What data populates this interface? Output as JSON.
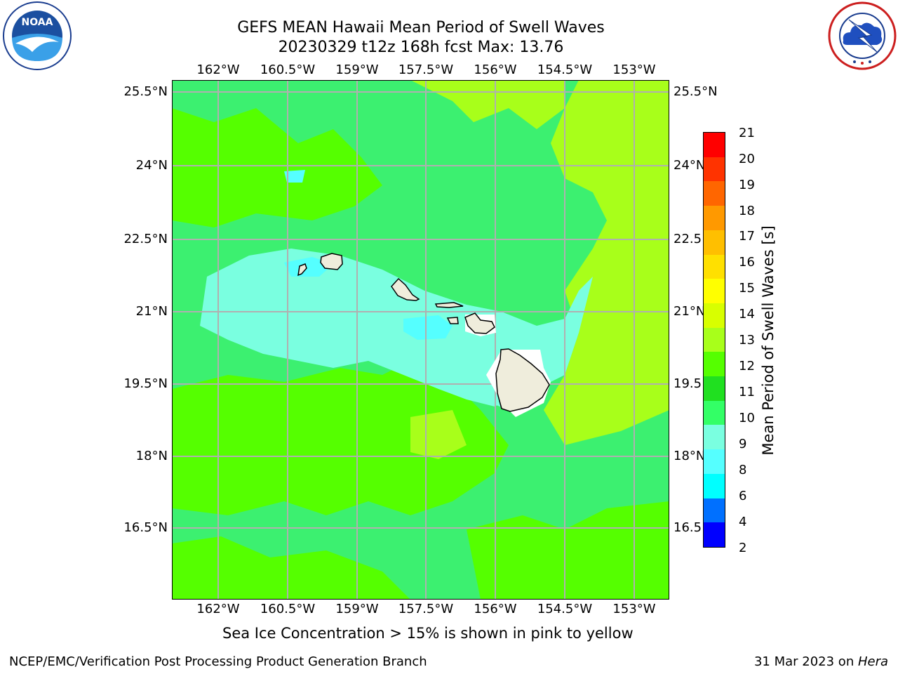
{
  "header": {
    "title_line1": "GEFS MEAN Hawaii Mean Period of Swell Waves",
    "title_line2": "20230329 t12z 168h fcst   Max: 13.76"
  },
  "logos": {
    "noaa": {
      "text": "NOAA",
      "ring_text": "NATIONAL OCEANIC AND ATMOSPHERIC ADMINISTRATION · U.S. DEPARTMENT OF COMMERCE"
    },
    "nws": {
      "ring_text": "NATIONAL WEATHER SERVICE"
    }
  },
  "map": {
    "lon_labels": [
      "162°W",
      "160.5°W",
      "159°W",
      "157.5°W",
      "156°W",
      "154.5°W",
      "153°W"
    ],
    "lat_labels": [
      "25.5°N",
      "24°N",
      "22.5°N",
      "21°N",
      "19.5°N",
      "18°N",
      "16.5°N"
    ],
    "lat_labels_right": [
      "25.5°N",
      "24°N",
      "22.5",
      "21°N",
      "19.5",
      "18°N",
      "16.5"
    ]
  },
  "colorbar": {
    "title": "Mean Period of Swell Waves [s]",
    "ticks": [
      "21",
      "20",
      "19",
      "18",
      "17",
      "16",
      "15",
      "14",
      "13",
      "12",
      "11",
      "10",
      "9",
      "8",
      "6",
      "4",
      "2"
    ],
    "colors": [
      "#ff0000",
      "#ff3300",
      "#ff6600",
      "#ff9900",
      "#ffbf00",
      "#ffe000",
      "#ffff00",
      "#d8ff00",
      "#a8ff1a",
      "#55ff00",
      "#20e020",
      "#33ff66",
      "#7affe0",
      "#55ffff",
      "#00ffff",
      "#0070ff",
      "#0000ff"
    ]
  },
  "footer": {
    "sea_ice_note": "Sea Ice Concentration > 15% is shown in pink to yellow",
    "branch": "NCEP/EMC/Verification Post Processing Product Generation Branch",
    "date_prefix": "31 Mar 2023 on ",
    "date_host": "Hera"
  }
}
